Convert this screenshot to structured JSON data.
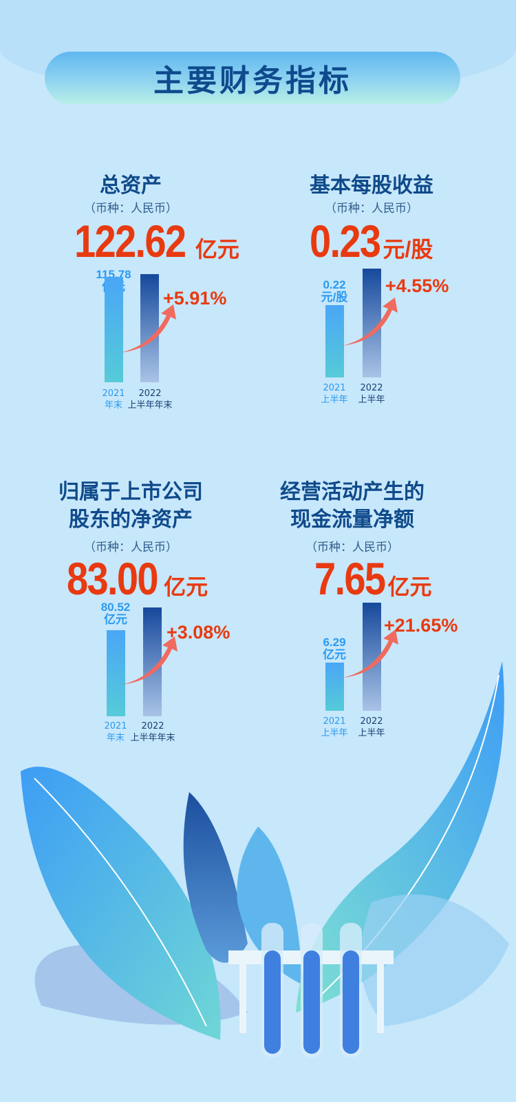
{
  "header": {
    "title": "主要财务指标"
  },
  "currency_note": "（币种：人民币）",
  "panels": [
    {
      "title_lines": [
        "总资产"
      ],
      "value": "122.62",
      "unit": "亿元",
      "prev_value": "115.78",
      "prev_unit": "亿元",
      "change": "+5.91%",
      "prev_period": [
        "2021",
        "年末"
      ],
      "curr_period": [
        "2022",
        "上半年年末"
      ]
    },
    {
      "title_lines": [
        "基本每股收益"
      ],
      "value": "0.23",
      "unit": "元/股",
      "prev_value": "0.22",
      "prev_unit": "元/股",
      "change": "+4.55%",
      "prev_period": [
        "2021",
        "上半年"
      ],
      "curr_period": [
        "2022",
        "上半年"
      ]
    },
    {
      "title_lines": [
        "归属于上市公司",
        "股东的净资产"
      ],
      "value": "83.00",
      "unit": "亿元",
      "prev_value": "80.52",
      "prev_unit": "亿元",
      "change": "+3.08%",
      "prev_period": [
        "2021",
        "年末"
      ],
      "curr_period": [
        "2022",
        "上半年年末"
      ]
    },
    {
      "title_lines": [
        "经营活动产生的",
        "现金流量净额"
      ],
      "value": "7.65",
      "unit": "亿元",
      "prev_value": "6.29",
      "prev_unit": "亿元",
      "change": "+21.65%",
      "prev_period": [
        "2021",
        "上半年"
      ],
      "curr_period": [
        "2022",
        "上半年"
      ]
    }
  ],
  "colors": {
    "background": "#c7e7fb",
    "title": "#0f4a8a",
    "value": "#e83a10",
    "arrow": "#f06a5e",
    "prev_bar": "#4aa6f6",
    "curr_bar": "#16499c"
  }
}
